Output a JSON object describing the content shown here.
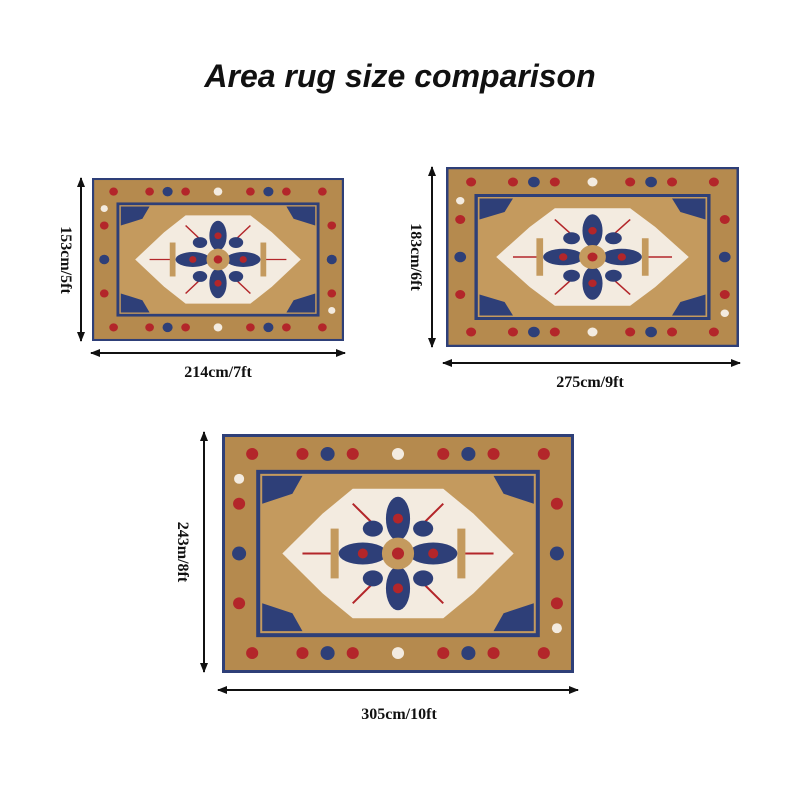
{
  "title": "Area rug  size comparison",
  "colors": {
    "border": "#b58a4e",
    "field": "#c49a5e",
    "medallion": "#f3ebe0",
    "navy": "#2e3f78",
    "red": "#b3262a",
    "arrow": "#111111"
  },
  "rugs": [
    {
      "width_label": "214cm/7ft",
      "height_label": "153cm/5ft"
    },
    {
      "width_label": "275cm/9ft",
      "height_label": "183cm/6ft"
    },
    {
      "width_label": "305cm/10ft",
      "height_label": "243m/8ft"
    }
  ]
}
